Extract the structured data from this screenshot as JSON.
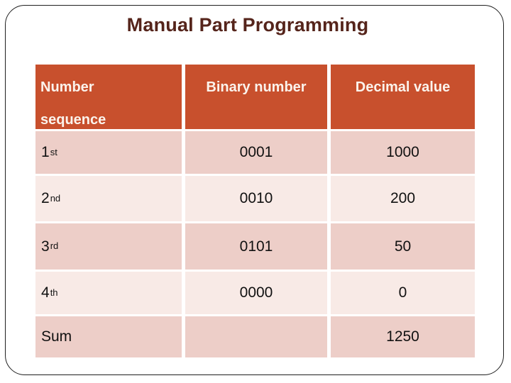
{
  "title": "Manual Part Programming",
  "colors": {
    "header_bg": "#C8502D",
    "header_text": "#FBF3EC",
    "row_odd_bg": "#EDCEC8",
    "row_even_bg": "#F8EAE6",
    "title_text": "#55241B",
    "cell_text": "#111111",
    "border": "#1F1F1F"
  },
  "table": {
    "headers": {
      "col1_line1": "Number",
      "col1_line2": "sequence",
      "col2": "Binary number",
      "col3": "Decimal value"
    },
    "rows": [
      {
        "seq": "1",
        "seq_sup": "st",
        "binary": "0001",
        "decimal": "1000"
      },
      {
        "seq": "2",
        "seq_sup": "nd",
        "binary": "0010",
        "decimal": "200"
      },
      {
        "seq": "3",
        "seq_sup": "rd",
        "binary": "0101",
        "decimal": "50"
      },
      {
        "seq": "4",
        "seq_sup": "th",
        "binary": "0000",
        "decimal": "0"
      },
      {
        "seq": "Sum",
        "seq_sup": "",
        "binary": "",
        "decimal": "1250"
      }
    ]
  }
}
